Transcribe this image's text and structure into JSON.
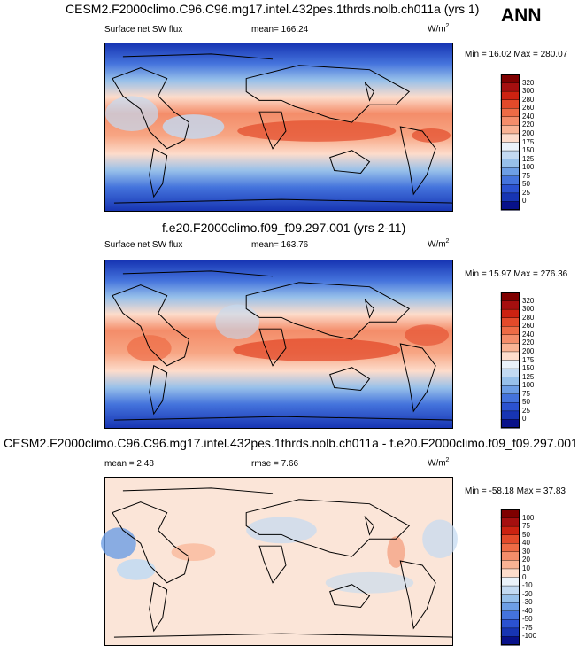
{
  "annotation": "ANN",
  "panels": [
    {
      "title": "CESM2.F2000climo.C96.C96.mg17.intel.432pes.1thrds.nolb.ch011a (yrs 1)",
      "left_label": "Surface net SW flux",
      "center_label": "mean=",
      "center_value": "166.24",
      "units": "W/m",
      "units_sup": "2",
      "minmax": "Min =  16.02 Max = 280.07",
      "colorbar": {
        "ticks": [
          "320",
          "300",
          "280",
          "260",
          "240",
          "220",
          "200",
          "175",
          "150",
          "125",
          "100",
          "75",
          "50",
          "25",
          "0"
        ],
        "colors": [
          "#7f0000",
          "#a50f0f",
          "#cc2211",
          "#e34a2a",
          "#ee6b45",
          "#f48d6a",
          "#f9b394",
          "#fddccb",
          "#eaf2fa",
          "#c3daf2",
          "#97c0ea",
          "#6d9ee5",
          "#4473dc",
          "#2b52d0",
          "#1735b3",
          "#08118a"
        ]
      }
    },
    {
      "title": "f.e20.F2000climo.f09_f09.297.001 (yrs 2-11)",
      "left_label": "Surface net SW flux",
      "center_label": "mean=",
      "center_value": "163.76",
      "units": "W/m",
      "units_sup": "2",
      "minmax": "Min =  15.97 Max = 276.36",
      "colorbar": {
        "ticks": [
          "320",
          "300",
          "280",
          "260",
          "240",
          "220",
          "200",
          "175",
          "150",
          "125",
          "100",
          "75",
          "50",
          "25",
          "0"
        ],
        "colors": [
          "#7f0000",
          "#a50f0f",
          "#cc2211",
          "#e34a2a",
          "#ee6b45",
          "#f48d6a",
          "#f9b394",
          "#fddccb",
          "#eaf2fa",
          "#c3daf2",
          "#97c0ea",
          "#6d9ee5",
          "#4473dc",
          "#2b52d0",
          "#1735b3",
          "#08118a"
        ]
      }
    },
    {
      "title": "CESM2.F2000climo.C96.C96.mg17.intel.432pes.1thrds.nolb.ch011a - f.e20.F2000climo.f09_f09.297.001",
      "left_label": "mean =",
      "left_value": "2.48",
      "center_label": "rmse =",
      "center_value": "7.66",
      "units": "W/m",
      "units_sup": "2",
      "minmax": "Min = -58.18 Max =  37.83",
      "colorbar": {
        "ticks": [
          "100",
          "75",
          "50",
          "40",
          "30",
          "20",
          "10",
          "0",
          "-10",
          "-20",
          "-30",
          "-40",
          "-50",
          "-75",
          "-100"
        ],
        "colors": [
          "#7f0000",
          "#a50f0f",
          "#cc2211",
          "#e34a2a",
          "#ee6b45",
          "#f48d6a",
          "#f9b394",
          "#fddccb",
          "#eaf2fa",
          "#c3daf2",
          "#97c0ea",
          "#6d9ee5",
          "#4473dc",
          "#2b52d0",
          "#1735b3",
          "#08118a"
        ]
      }
    }
  ]
}
